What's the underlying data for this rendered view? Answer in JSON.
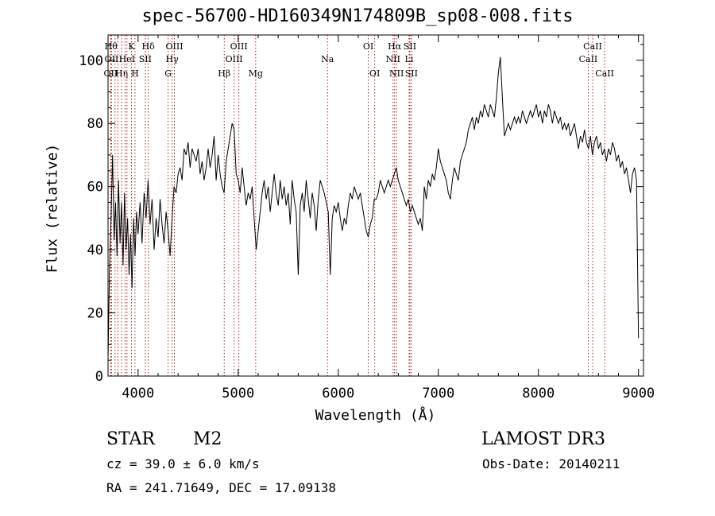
{
  "chart_data": {
    "type": "line",
    "title": "spec-56700-HD160349N174809B_sp08-008.fits",
    "xlabel": "Wavelength (Å)",
    "ylabel": "Flux (relative)",
    "xlim": [
      3700,
      9050
    ],
    "ylim": [
      0,
      108
    ],
    "xticks": [
      4000,
      5000,
      6000,
      7000,
      8000,
      9000
    ],
    "yticks": [
      0,
      20,
      40,
      60,
      80,
      100
    ],
    "grid": false,
    "series": [
      {
        "color": "#000000",
        "points": [
          [
            3700,
            5
          ],
          [
            3715,
            35
          ],
          [
            3730,
            50
          ],
          [
            3745,
            70
          ],
          [
            3760,
            43
          ],
          [
            3775,
            55
          ],
          [
            3790,
            38
          ],
          [
            3805,
            62
          ],
          [
            3820,
            42
          ],
          [
            3835,
            55
          ],
          [
            3850,
            35
          ],
          [
            3865,
            58
          ],
          [
            3880,
            40
          ],
          [
            3895,
            50
          ],
          [
            3910,
            32
          ],
          [
            3925,
            45
          ],
          [
            3940,
            28
          ],
          [
            3955,
            50
          ],
          [
            3970,
            38
          ],
          [
            3985,
            52
          ],
          [
            4000,
            45
          ],
          [
            4020,
            55
          ],
          [
            4040,
            42
          ],
          [
            4060,
            58
          ],
          [
            4080,
            50
          ],
          [
            4100,
            62
          ],
          [
            4120,
            48
          ],
          [
            4140,
            56
          ],
          [
            4160,
            40
          ],
          [
            4180,
            50
          ],
          [
            4200,
            44
          ],
          [
            4220,
            56
          ],
          [
            4240,
            48
          ],
          [
            4260,
            42
          ],
          [
            4280,
            52
          ],
          [
            4300,
            46
          ],
          [
            4320,
            38
          ],
          [
            4340,
            50
          ],
          [
            4360,
            60
          ],
          [
            4380,
            58
          ],
          [
            4400,
            64
          ],
          [
            4420,
            66
          ],
          [
            4440,
            62
          ],
          [
            4460,
            72
          ],
          [
            4480,
            70
          ],
          [
            4500,
            74
          ],
          [
            4520,
            66
          ],
          [
            4540,
            72
          ],
          [
            4560,
            70
          ],
          [
            4580,
            68
          ],
          [
            4600,
            72
          ],
          [
            4620,
            64
          ],
          [
            4640,
            68
          ],
          [
            4660,
            62
          ],
          [
            4680,
            66
          ],
          [
            4700,
            72
          ],
          [
            4720,
            66
          ],
          [
            4740,
            70
          ],
          [
            4760,
            76
          ],
          [
            4780,
            62
          ],
          [
            4800,
            70
          ],
          [
            4820,
            64
          ],
          [
            4840,
            60
          ],
          [
            4860,
            58
          ],
          [
            4880,
            68
          ],
          [
            4900,
            72
          ],
          [
            4920,
            76
          ],
          [
            4940,
            80
          ],
          [
            4960,
            78
          ],
          [
            4980,
            64
          ],
          [
            5000,
            62
          ],
          [
            5020,
            58
          ],
          [
            5040,
            66
          ],
          [
            5060,
            60
          ],
          [
            5080,
            54
          ],
          [
            5100,
            58
          ],
          [
            5120,
            56
          ],
          [
            5140,
            60
          ],
          [
            5160,
            50
          ],
          [
            5180,
            40
          ],
          [
            5200,
            46
          ],
          [
            5220,
            52
          ],
          [
            5240,
            58
          ],
          [
            5260,
            62
          ],
          [
            5280,
            56
          ],
          [
            5300,
            60
          ],
          [
            5320,
            52
          ],
          [
            5340,
            58
          ],
          [
            5360,
            64
          ],
          [
            5380,
            58
          ],
          [
            5400,
            54
          ],
          [
            5420,
            62
          ],
          [
            5440,
            56
          ],
          [
            5460,
            60
          ],
          [
            5480,
            54
          ],
          [
            5500,
            58
          ],
          [
            5520,
            48
          ],
          [
            5540,
            62
          ],
          [
            5560,
            56
          ],
          [
            5580,
            52
          ],
          [
            5600,
            32
          ],
          [
            5620,
            54
          ],
          [
            5640,
            58
          ],
          [
            5660,
            52
          ],
          [
            5680,
            62
          ],
          [
            5700,
            56
          ],
          [
            5720,
            50
          ],
          [
            5740,
            58
          ],
          [
            5760,
            54
          ],
          [
            5780,
            46
          ],
          [
            5800,
            56
          ],
          [
            5820,
            62
          ],
          [
            5840,
            60
          ],
          [
            5860,
            58
          ],
          [
            5880,
            55
          ],
          [
            5900,
            52
          ],
          [
            5910,
            42
          ],
          [
            5920,
            32
          ],
          [
            5930,
            40
          ],
          [
            5940,
            50
          ],
          [
            5960,
            54
          ],
          [
            5980,
            52
          ],
          [
            6000,
            55
          ],
          [
            6020,
            50
          ],
          [
            6040,
            46
          ],
          [
            6060,
            50
          ],
          [
            6080,
            48
          ],
          [
            6100,
            54
          ],
          [
            6120,
            58
          ],
          [
            6140,
            56
          ],
          [
            6160,
            60
          ],
          [
            6180,
            58
          ],
          [
            6200,
            56
          ],
          [
            6220,
            58
          ],
          [
            6240,
            54
          ],
          [
            6260,
            50
          ],
          [
            6280,
            46
          ],
          [
            6300,
            44
          ],
          [
            6320,
            48
          ],
          [
            6340,
            50
          ],
          [
            6360,
            56
          ],
          [
            6380,
            56
          ],
          [
            6400,
            58
          ],
          [
            6420,
            62
          ],
          [
            6440,
            60
          ],
          [
            6460,
            58
          ],
          [
            6480,
            60
          ],
          [
            6500,
            62
          ],
          [
            6520,
            60
          ],
          [
            6540,
            62
          ],
          [
            6560,
            64
          ],
          [
            6580,
            66
          ],
          [
            6600,
            62
          ],
          [
            6620,
            60
          ],
          [
            6640,
            58
          ],
          [
            6660,
            56
          ],
          [
            6680,
            54
          ],
          [
            6700,
            56
          ],
          [
            6720,
            52
          ],
          [
            6740,
            54
          ],
          [
            6760,
            52
          ],
          [
            6780,
            50
          ],
          [
            6800,
            48
          ],
          [
            6820,
            50
          ],
          [
            6840,
            46
          ],
          [
            6860,
            60
          ],
          [
            6880,
            56
          ],
          [
            6900,
            62
          ],
          [
            6920,
            60
          ],
          [
            6940,
            64
          ],
          [
            6960,
            62
          ],
          [
            6980,
            66
          ],
          [
            7000,
            72
          ],
          [
            7020,
            68
          ],
          [
            7040,
            66
          ],
          [
            7060,
            64
          ],
          [
            7080,
            62
          ],
          [
            7100,
            58
          ],
          [
            7120,
            56
          ],
          [
            7140,
            62
          ],
          [
            7160,
            66
          ],
          [
            7180,
            64
          ],
          [
            7200,
            62
          ],
          [
            7220,
            68
          ],
          [
            7240,
            70
          ],
          [
            7260,
            72
          ],
          [
            7280,
            74
          ],
          [
            7300,
            78
          ],
          [
            7320,
            80
          ],
          [
            7340,
            82
          ],
          [
            7360,
            78
          ],
          [
            7380,
            82
          ],
          [
            7400,
            80
          ],
          [
            7420,
            84
          ],
          [
            7440,
            82
          ],
          [
            7460,
            86
          ],
          [
            7480,
            84
          ],
          [
            7500,
            82
          ],
          [
            7520,
            86
          ],
          [
            7540,
            84
          ],
          [
            7560,
            82
          ],
          [
            7580,
            88
          ],
          [
            7600,
            96
          ],
          [
            7620,
            101
          ],
          [
            7640,
            88
          ],
          [
            7660,
            76
          ],
          [
            7680,
            78
          ],
          [
            7700,
            80
          ],
          [
            7720,
            78
          ],
          [
            7740,
            80
          ],
          [
            7760,
            82
          ],
          [
            7780,
            80
          ],
          [
            7800,
            82
          ],
          [
            7820,
            80
          ],
          [
            7840,
            84
          ],
          [
            7860,
            82
          ],
          [
            7880,
            80
          ],
          [
            7900,
            82
          ],
          [
            7920,
            84
          ],
          [
            7940,
            82
          ],
          [
            7960,
            84
          ],
          [
            7980,
            86
          ],
          [
            8000,
            82
          ],
          [
            8020,
            84
          ],
          [
            8040,
            80
          ],
          [
            8060,
            84
          ],
          [
            8080,
            82
          ],
          [
            8100,
            86
          ],
          [
            8120,
            84
          ],
          [
            8140,
            80
          ],
          [
            8160,
            84
          ],
          [
            8180,
            82
          ],
          [
            8200,
            80
          ],
          [
            8220,
            82
          ],
          [
            8240,
            78
          ],
          [
            8260,
            80
          ],
          [
            8280,
            78
          ],
          [
            8300,
            80
          ],
          [
            8320,
            76
          ],
          [
            8340,
            78
          ],
          [
            8360,
            80
          ],
          [
            8380,
            76
          ],
          [
            8400,
            72
          ],
          [
            8420,
            76
          ],
          [
            8440,
            74
          ],
          [
            8460,
            78
          ],
          [
            8480,
            74
          ],
          [
            8500,
            72
          ],
          [
            8520,
            76
          ],
          [
            8540,
            70
          ],
          [
            8560,
            74
          ],
          [
            8580,
            76
          ],
          [
            8600,
            72
          ],
          [
            8620,
            74
          ],
          [
            8640,
            70
          ],
          [
            8660,
            72
          ],
          [
            8680,
            68
          ],
          [
            8700,
            72
          ],
          [
            8720,
            70
          ],
          [
            8740,
            74
          ],
          [
            8760,
            72
          ],
          [
            8780,
            68
          ],
          [
            8800,
            70
          ],
          [
            8820,
            66
          ],
          [
            8840,
            68
          ],
          [
            8860,
            64
          ],
          [
            8880,
            66
          ],
          [
            8900,
            62
          ],
          [
            8920,
            58
          ],
          [
            8940,
            64
          ],
          [
            8960,
            66
          ],
          [
            8980,
            62
          ],
          [
            9000,
            12
          ]
        ]
      }
    ],
    "lines": [
      {
        "x": 3730,
        "label": "Hθ",
        "row": 1
      },
      {
        "x": 3735,
        "label": "OII",
        "row": 2
      },
      {
        "x": 3727,
        "label": "OII",
        "row": 3
      },
      {
        "x": 3770,
        "label": "",
        "row": 0
      },
      {
        "x": 3797,
        "label": "",
        "row": 0
      },
      {
        "x": 3835,
        "label": "Hη",
        "row": 3
      },
      {
        "x": 3870,
        "label": "",
        "row": 0
      },
      {
        "x": 3889,
        "label": "HeI",
        "row": 2
      },
      {
        "x": 3934,
        "label": "K",
        "row": 1
      },
      {
        "x": 3969,
        "label": "H",
        "row": 3
      },
      {
        "x": 4072,
        "label": "SII",
        "row": 2
      },
      {
        "x": 4102,
        "label": "Hδ",
        "row": 1
      },
      {
        "x": 4300,
        "label": "G",
        "row": 3
      },
      {
        "x": 4340,
        "label": "Hγ",
        "row": 2
      },
      {
        "x": 4363,
        "label": "OIII",
        "row": 1
      },
      {
        "x": 4861,
        "label": "Hβ",
        "row": 3
      },
      {
        "x": 4959,
        "label": "OIII",
        "row": 2
      },
      {
        "x": 5007,
        "label": "OIII",
        "row": 1
      },
      {
        "x": 5175,
        "label": "Mg",
        "row": 3
      },
      {
        "x": 5893,
        "label": "Na",
        "row": 2
      },
      {
        "x": 6300,
        "label": "OI",
        "row": 1
      },
      {
        "x": 6364,
        "label": "OI",
        "row": 3
      },
      {
        "x": 6548,
        "label": "NII",
        "row": 2
      },
      {
        "x": 6563,
        "label": "Hα",
        "row": 1
      },
      {
        "x": 6583,
        "label": "NII",
        "row": 3
      },
      {
        "x": 6708,
        "label": "Li",
        "row": 2
      },
      {
        "x": 6716,
        "label": "SII",
        "row": 1
      },
      {
        "x": 6731,
        "label": "SII",
        "row": 3
      },
      {
        "x": 8498,
        "label": "CaII",
        "row": 2
      },
      {
        "x": 8542,
        "label": "CaII",
        "row": 1
      },
      {
        "x": 8662,
        "label": "CaII",
        "row": 3
      }
    ]
  },
  "footer": {
    "object_type": "STAR",
    "subclass": "M2",
    "survey": "LAMOST DR3",
    "cz": "cz = 39.0 ± 6.0 km/s",
    "obs_date": "Obs-Date: 20140211",
    "coords": "RA = 241.71649, DEC =  17.09138"
  }
}
